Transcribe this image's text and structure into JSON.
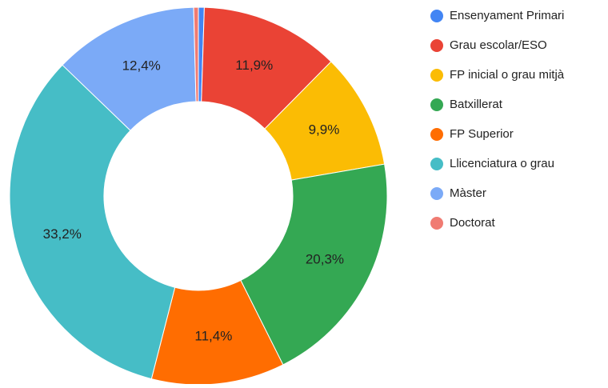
{
  "chart_data": {
    "type": "donut",
    "categories": [
      "Ensenyament Primari",
      "Grau escolar/ESO",
      "FP inicial o grau mitjà",
      "Batxillerat",
      "FP Superior",
      "Llicenciatura o grau",
      "Màster",
      "Doctorat"
    ],
    "values": [
      0.5,
      11.9,
      9.9,
      20.3,
      11.4,
      33.2,
      12.4,
      0.4
    ],
    "value_labels": [
      null,
      "11,9%",
      "9,9%",
      "20,3%",
      "11,4%",
      "33,2%",
      "12,4%",
      null
    ],
    "colors": [
      "#4285f4",
      "#ea4335",
      "#fbbc04",
      "#34a853",
      "#ff6d01",
      "#46bdc6",
      "#7baaf7",
      "#f07b72"
    ],
    "legend": "right"
  }
}
